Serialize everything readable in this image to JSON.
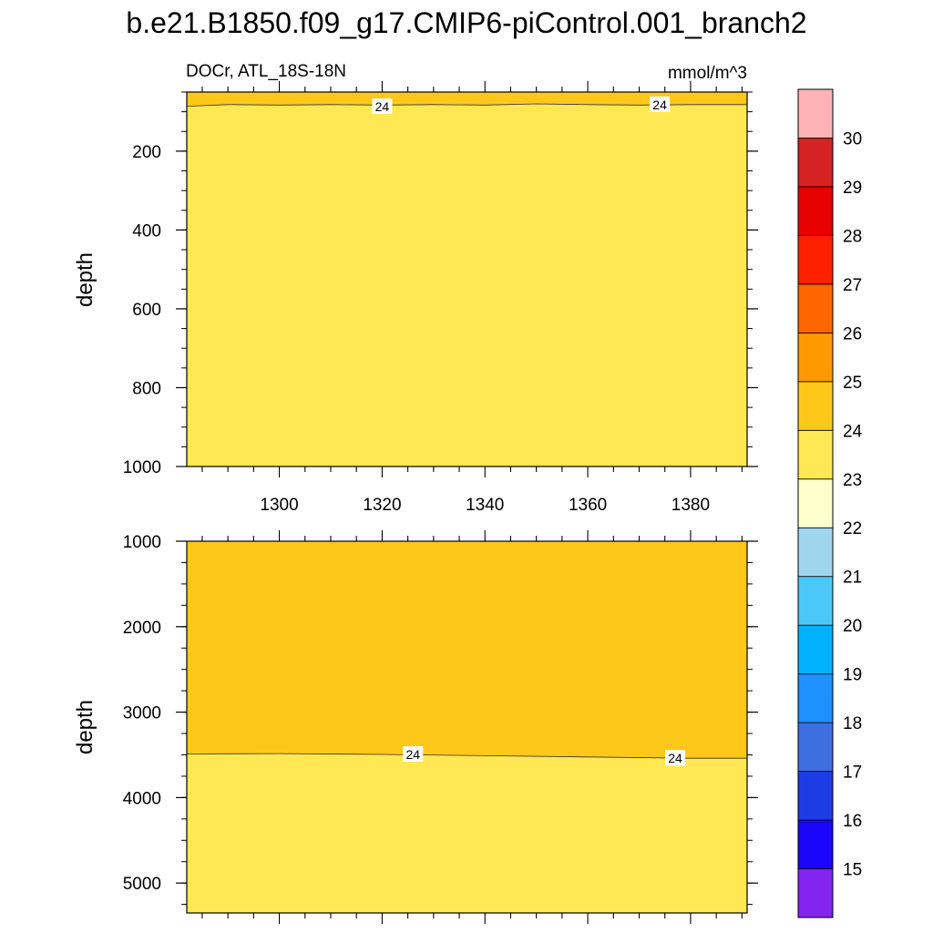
{
  "title": "b.e21.B1850.f09_g17.CMIP6-piControl.001_branch2",
  "subtitle_left": "DOCr, ATL_18S-18N",
  "subtitle_right": "mmol/m^3",
  "colors": {
    "level_23_24": "#ffe853",
    "level_24_25": "#fec81b"
  },
  "colorbar": {
    "labels": [
      "15",
      "16",
      "17",
      "18",
      "19",
      "20",
      "21",
      "22",
      "23",
      "24",
      "25",
      "26",
      "27",
      "28",
      "29",
      "30"
    ],
    "colors": [
      "#8424f0",
      "#1a04fa",
      "#1e3ce6",
      "#3e6fe1",
      "#1e90ff",
      "#00b2ff",
      "#4cc8f8",
      "#a0d6ed",
      "#ffffcc",
      "#ffe853",
      "#fec81b",
      "#fe9a00",
      "#ff6600",
      "#ff2000",
      "#e60000",
      "#d62222",
      "#ffb3b6"
    ]
  },
  "chart_data": [
    {
      "type": "heatmap",
      "panel": "upper",
      "xlim": [
        1282,
        1391
      ],
      "ylim": [
        1000,
        50
      ],
      "y_reversed": true,
      "ylabel": "depth",
      "xticks": [
        "1300",
        "1320",
        "1340",
        "1360",
        "1380"
      ],
      "yticks": [
        "200",
        "400",
        "600",
        "800",
        "1000"
      ],
      "contour_levels": [
        24
      ],
      "contour_labels": [
        "24",
        "24"
      ],
      "isoline_24": {
        "x": [
          1282,
          1290,
          1300,
          1310,
          1320,
          1330,
          1340,
          1350,
          1360,
          1370,
          1380,
          1391
        ],
        "depth": [
          86,
          82,
          83,
          82,
          83,
          82,
          83,
          80,
          82,
          83,
          82,
          82
        ]
      },
      "regions": [
        {
          "from_depth": "surface",
          "to_depth": "isoline_24",
          "range": "24-25"
        },
        {
          "from_depth": "isoline_24",
          "to_depth": 1000,
          "range": "23-24"
        }
      ]
    },
    {
      "type": "heatmap",
      "panel": "lower",
      "xlim": [
        1282,
        1391
      ],
      "ylim": [
        5350,
        1000
      ],
      "y_reversed": true,
      "ylabel": "depth",
      "yticks": [
        "1000",
        "2000",
        "3000",
        "4000",
        "5000"
      ],
      "contour_levels": [
        24
      ],
      "contour_labels": [
        "24",
        "24"
      ],
      "isoline_24": {
        "x": [
          1282,
          1300,
          1320,
          1340,
          1360,
          1380,
          1391
        ],
        "depth": [
          3490,
          3485,
          3495,
          3510,
          3525,
          3540,
          3540
        ]
      },
      "regions": [
        {
          "from_depth": 1000,
          "to_depth": "isoline_24",
          "range": "24-25"
        },
        {
          "from_depth": "isoline_24",
          "to_depth": 5350,
          "range": "23-24"
        }
      ]
    }
  ]
}
